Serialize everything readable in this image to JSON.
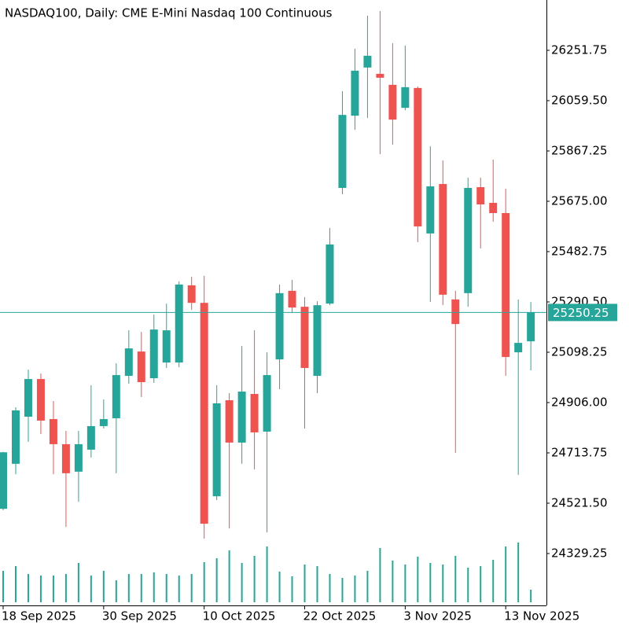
{
  "chart_data": {
    "type": "candlestick",
    "title": "NASDAQ100, Daily:  CME E-Mini Nasdaq 100 Continuous",
    "categories": [
      "18 Sep 2025",
      null,
      null,
      null,
      null,
      null,
      null,
      null,
      "30 Sep 2025",
      null,
      null,
      null,
      null,
      null,
      null,
      null,
      "10 Oct 2025",
      null,
      null,
      null,
      null,
      null,
      null,
      null,
      "22 Oct 2025",
      null,
      null,
      null,
      null,
      null,
      null,
      null,
      "3 Nov 2025",
      null,
      null,
      null,
      null,
      null,
      null,
      null,
      "13 Nov 2025",
      null,
      null
    ],
    "open": [
      24500,
      24672,
      24852,
      24996,
      24843,
      24747,
      24642,
      24726,
      24816,
      24846,
      25008,
      25101,
      24999,
      25059,
      25059,
      25354,
      25287,
      24548,
      24915,
      24753,
      24939,
      24795,
      25071,
      25333,
      25272,
      25008,
      25284,
      25726,
      26002,
      26186,
      26162,
      26120,
      26032,
      26108,
      25552,
      25741,
      25300,
      25324,
      25729,
      25669,
      25630,
      25098,
      25140
    ],
    "high": [
      24718,
      24888,
      25032,
      25017,
      24912,
      24798,
      24798,
      24972,
      24918,
      25056,
      25182,
      25176,
      25242,
      25284,
      25369,
      25387,
      25390,
      24972,
      24942,
      25122,
      25182,
      25098,
      25357,
      25375,
      25309,
      25293,
      25573,
      26095,
      26258,
      26384,
      26402,
      26279,
      26270,
      26114,
      25885,
      25831,
      25333,
      25765,
      25765,
      25834,
      25723,
      25300,
      25290
    ],
    "low": [
      24495,
      24632,
      24756,
      24786,
      24632,
      24431,
      24527,
      24696,
      24807,
      24636,
      24978,
      24927,
      24981,
      25038,
      25041,
      25260,
      24386,
      24533,
      24425,
      24672,
      24651,
      24410,
      24957,
      25248,
      24807,
      24942,
      25278,
      25702,
      25948,
      25993,
      25855,
      25891,
      26023,
      25519,
      25290,
      25278,
      24714,
      25272,
      25495,
      25597,
      25008,
      24630,
      25029
    ],
    "close": [
      24716,
      24876,
      24996,
      24837,
      24747,
      24636,
      24747,
      24816,
      24843,
      25011,
      25113,
      24984,
      25185,
      25182,
      25357,
      25287,
      24443,
      24903,
      24753,
      24948,
      24792,
      25011,
      25324,
      25269,
      25038,
      25278,
      25510,
      26005,
      26174,
      26231,
      26147,
      25987,
      26111,
      25579,
      25732,
      25318,
      25206,
      25726,
      25663,
      25630,
      25080,
      25134,
      25250.25
    ],
    "volume": [
      40,
      46,
      36,
      34,
      34,
      36,
      50,
      34,
      40,
      28,
      36,
      36,
      38,
      36,
      34,
      36,
      51,
      56,
      66,
      50,
      59,
      71,
      39,
      33,
      48,
      46,
      36,
      31,
      34,
      40,
      69,
      53,
      48,
      58,
      50,
      48,
      59,
      44,
      46,
      54,
      71,
      76,
      16
    ],
    "up_color": "#26a69a",
    "down_color": "#ef5350",
    "ylim": [
      24131,
      26444
    ],
    "yticks": [
      {
        "value": 24329.25,
        "label": "24329.25"
      },
      {
        "value": 24521.5,
        "label": "24521.50"
      },
      {
        "value": 24713.75,
        "label": "24713.75"
      },
      {
        "value": 24906,
        "label": "24906.00"
      },
      {
        "value": 25098.25,
        "label": "25098.25"
      },
      {
        "value": 25290.5,
        "label": "25290.50"
      },
      {
        "value": 25482.75,
        "label": "25482.75"
      },
      {
        "value": 25675,
        "label": "25675.00"
      },
      {
        "value": 25867.25,
        "label": "25867.25"
      },
      {
        "value": 26059.5,
        "label": "26059.50"
      },
      26251.75
    ],
    "last_price": 25250.25,
    "last_color": "#26a69a",
    "grid": false
  }
}
